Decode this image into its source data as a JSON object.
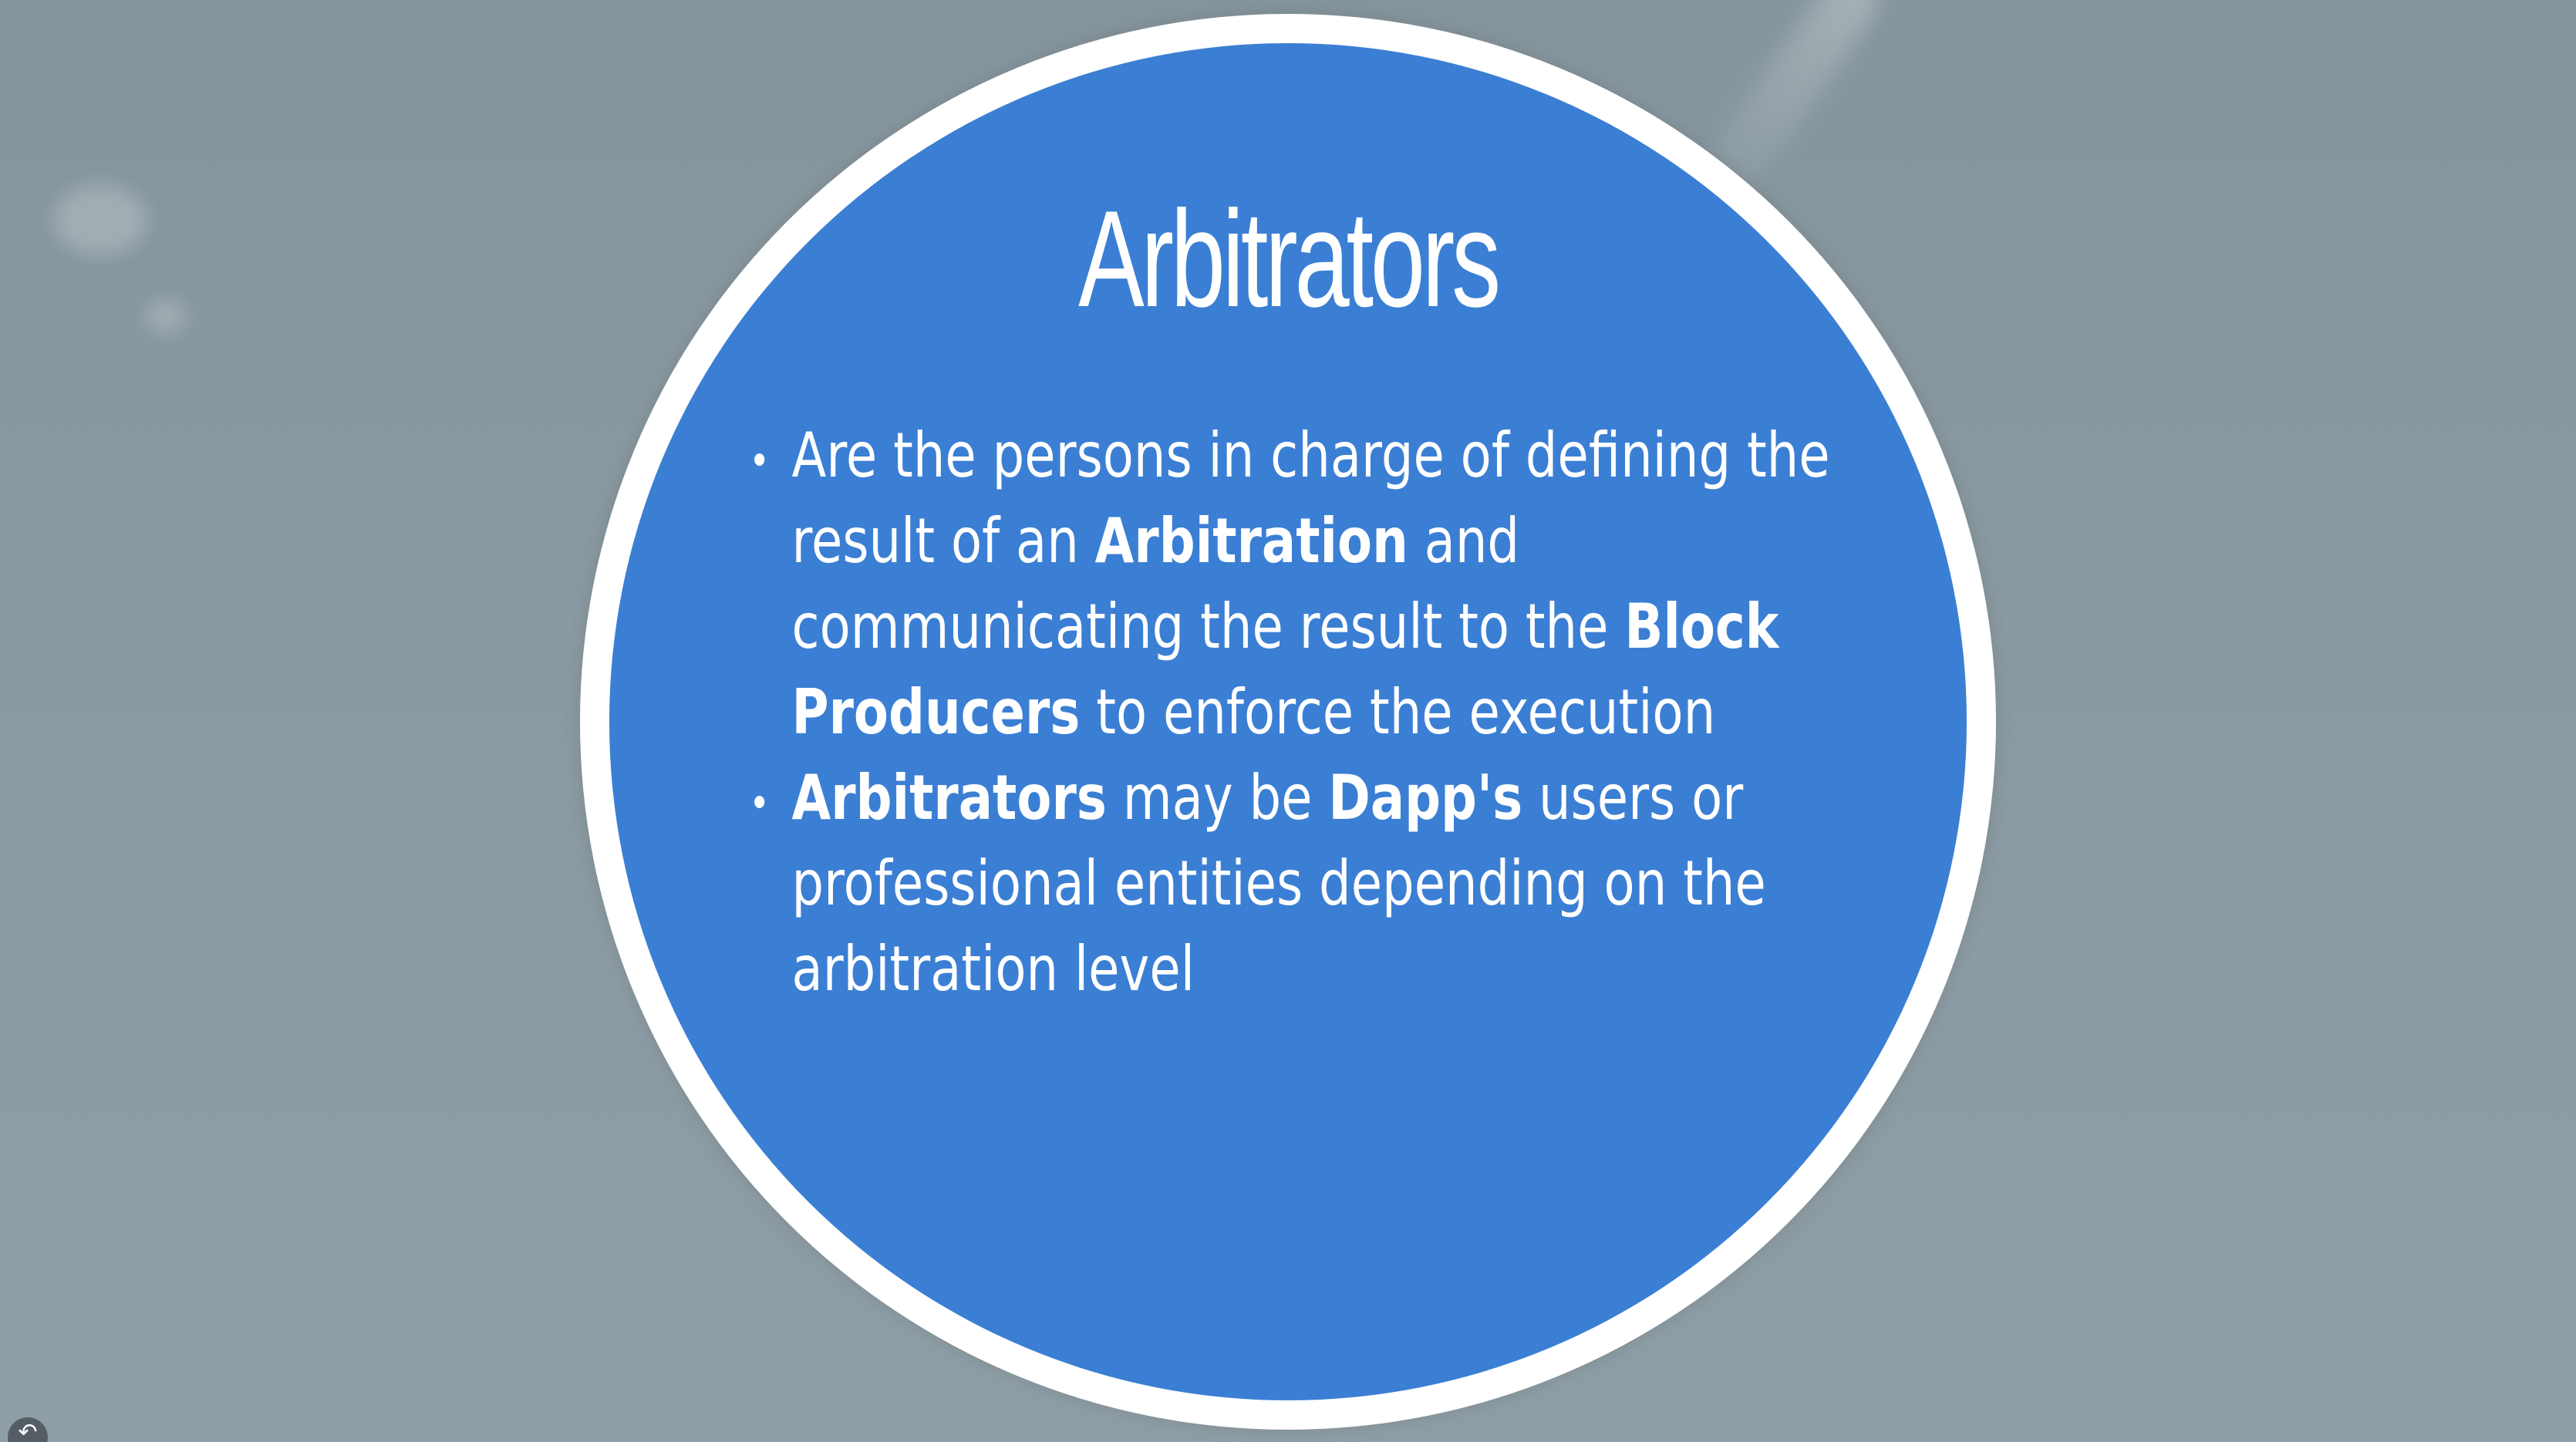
{
  "slide": {
    "title": "Arbitrators",
    "bullets": [
      {
        "segments": [
          {
            "text": "Are the persons in charge of defining the result of an ",
            "bold": false
          },
          {
            "text": "Arbitration",
            "bold": true
          },
          {
            "text": " and communicating the result to the ",
            "bold": false
          },
          {
            "text": "Block Producers",
            "bold": true
          },
          {
            "text": " to enforce the execution",
            "bold": false
          }
        ]
      },
      {
        "segments": [
          {
            "text": "Arbitrators",
            "bold": true
          },
          {
            "text": " may be ",
            "bold": false
          },
          {
            "text": "Dapp's",
            "bold": true
          },
          {
            "text": " users or professional entities depending on the arbitration level",
            "bold": false
          }
        ]
      }
    ]
  },
  "controls": {
    "undo_icon": "↶"
  },
  "colors": {
    "background": "#8b9aa2",
    "circle_fill": "#3b7fd4",
    "circle_border": "#ffffff",
    "text": "#ffffff"
  }
}
